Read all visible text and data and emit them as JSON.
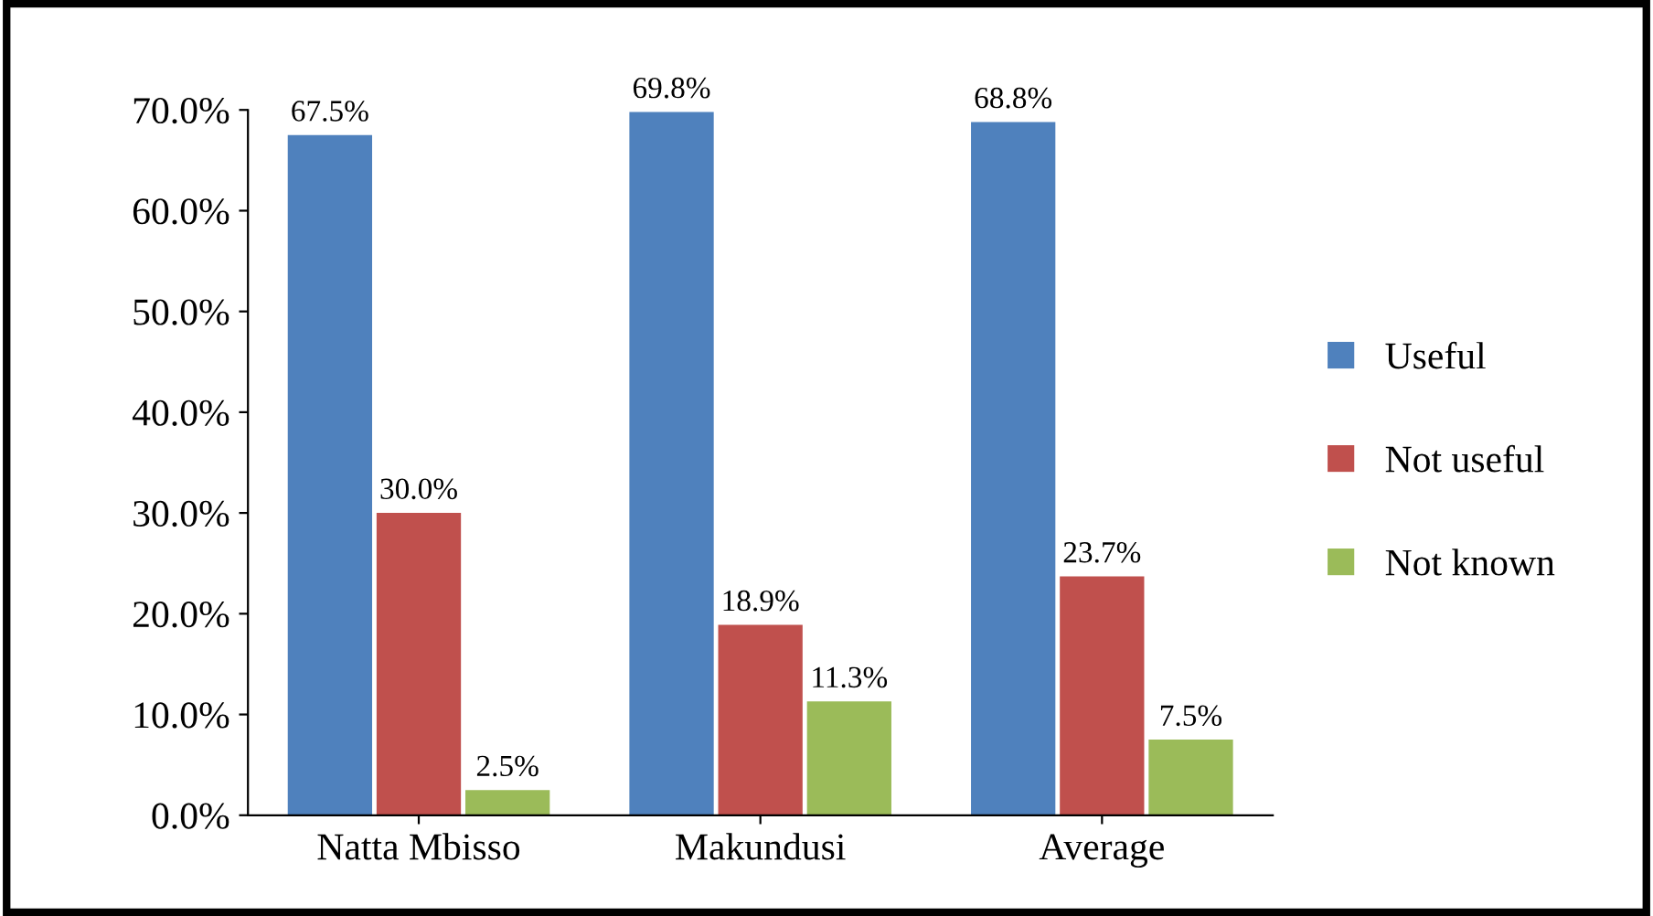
{
  "chart_data": {
    "type": "bar",
    "categories": [
      "Natta Mbisso",
      "Makundusi",
      "Average"
    ],
    "series": [
      {
        "name": "Useful",
        "color": "#4f81bd",
        "values": [
          67.5,
          69.8,
          68.8
        ],
        "value_labels": [
          "67.5%",
          "69.8%",
          "68.8%"
        ]
      },
      {
        "name": "Not useful",
        "color": "#c0504d",
        "values": [
          30.0,
          18.9,
          23.7
        ],
        "value_labels": [
          "30.0%",
          "18.9%",
          "23.7%"
        ]
      },
      {
        "name": "Not known",
        "color": "#9bbb59",
        "values": [
          2.5,
          11.3,
          7.5
        ],
        "value_labels": [
          "2.5%",
          "11.3%",
          "7.5%"
        ]
      }
    ],
    "ylim": [
      0,
      70
    ],
    "yticks": [
      {
        "value": 0,
        "label": "0.0%"
      },
      {
        "value": 10,
        "label": "10.0%"
      },
      {
        "value": 20,
        "label": "20.0%"
      },
      {
        "value": 30,
        "label": "30.0%"
      },
      {
        "value": 40,
        "label": "40.0%"
      },
      {
        "value": 50,
        "label": "50.0%"
      },
      {
        "value": 60,
        "label": "60.0%"
      },
      {
        "value": 70,
        "label": "70.0%"
      }
    ],
    "grid": false,
    "legend": "right"
  }
}
